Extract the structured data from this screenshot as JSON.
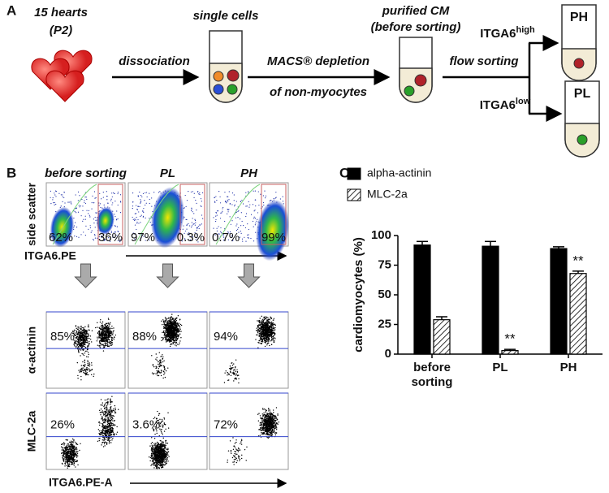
{
  "panel_a": {
    "label": "A",
    "hearts": [
      "15 hearts",
      "(P2)"
    ],
    "step1": "dissociation",
    "cells": "single cells",
    "step2": [
      "MACS® depletion",
      "of non-myocytes"
    ],
    "purified": [
      "purified CM",
      "(before sorting)"
    ],
    "step3": "flow sorting",
    "high": {
      "text": "ITGA6",
      "sup": "high",
      "tube": "PH"
    },
    "low": {
      "text": "ITGA6",
      "sup": "low",
      "tube": "PL"
    }
  },
  "panel_b": {
    "label": "B",
    "columns": [
      "before sorting",
      "PL",
      "PH"
    ],
    "row_labels": [
      "side scatter",
      "α-actinin",
      "MLC-2a"
    ],
    "x_labels": [
      "ITGA6.PE",
      "ITGA6.PE-A"
    ],
    "gates": [
      [
        "62%",
        "36%"
      ],
      [
        "97%",
        "0.3%"
      ],
      [
        "0.7%",
        "99%"
      ]
    ],
    "actinin": [
      "85%",
      "88%",
      "94%"
    ],
    "mlc": [
      "26%",
      "3.6%",
      "72%"
    ]
  },
  "chart_data": {
    "type": "bar",
    "label": "C",
    "y_label": "cardiomyocytes (%)",
    "categories": [
      "before sorting",
      "PL",
      "PH"
    ],
    "series": [
      {
        "name": "alpha-actinin",
        "color": "#000000",
        "pattern": "solid",
        "values": [
          92,
          91,
          89
        ],
        "errors": [
          3,
          4,
          1.5
        ]
      },
      {
        "name": "MLC-2a",
        "color": "#000000",
        "pattern": "hatch",
        "values": [
          29,
          3,
          68
        ],
        "errors": [
          2.5,
          1,
          2
        ]
      }
    ],
    "annotations": [
      {
        "category": 1,
        "series": 1,
        "text": "**"
      },
      {
        "category": 2,
        "series": 1,
        "text": "**"
      }
    ],
    "ylim": [
      0,
      100
    ],
    "yticks": [
      0,
      25,
      50,
      75,
      100
    ],
    "legend": "top-left"
  }
}
